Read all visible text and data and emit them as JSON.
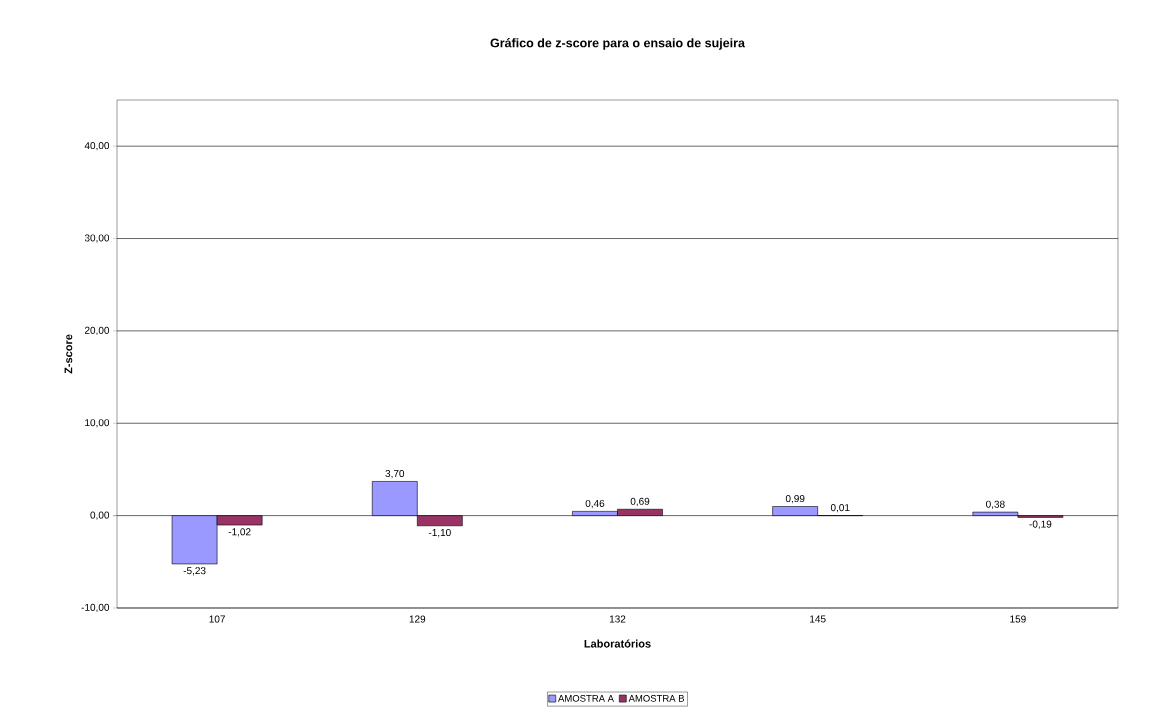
{
  "chart_data": {
    "type": "bar",
    "title": "Gráfico de z-score para o ensaio de sujeira",
    "xlabel": "Laboratórios",
    "ylabel": "Z-score",
    "categories": [
      "107",
      "129",
      "132",
      "145",
      "159"
    ],
    "series": [
      {
        "name": "AMOSTRA A",
        "color": "#9999ff",
        "values": [
          -5.23,
          3.7,
          0.46,
          0.99,
          0.38
        ],
        "value_labels": [
          "-5,23",
          "3,70",
          "0,46",
          "0,99",
          "0,38"
        ]
      },
      {
        "name": "AMOSTRA B",
        "color": "#993366",
        "values": [
          -1.02,
          -1.1,
          0.69,
          0.01,
          -0.19
        ],
        "value_labels": [
          "-1,02",
          "-1,10",
          "0,69",
          "0,01",
          "-0,19"
        ]
      }
    ],
    "ylim": [
      -10,
      45
    ],
    "yticks": [
      {
        "value": -10,
        "label": "-10,00"
      },
      {
        "value": 0,
        "label": "0,00"
      },
      {
        "value": 10,
        "label": "10,00"
      },
      {
        "value": 20,
        "label": "20,00"
      },
      {
        "value": 30,
        "label": "30,00"
      },
      {
        "value": 40,
        "label": "40,00"
      }
    ],
    "grid": "y",
    "legend": "bottom"
  }
}
